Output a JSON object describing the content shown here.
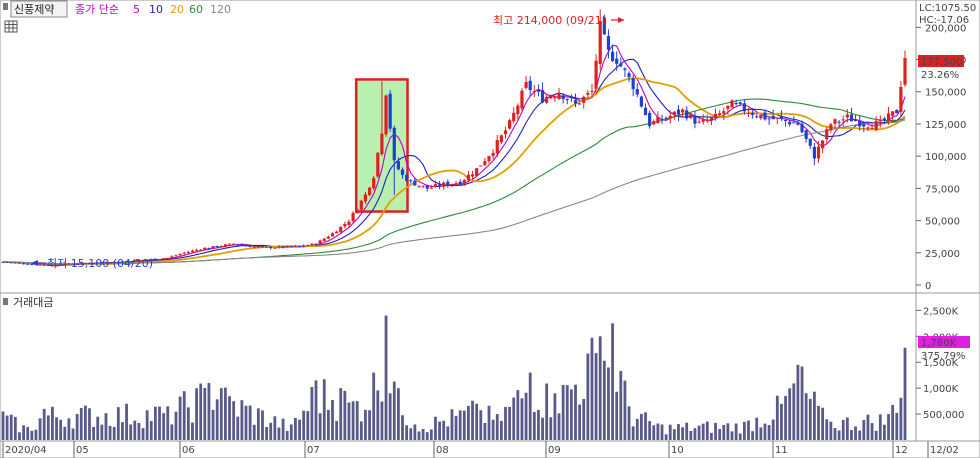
{
  "header": {
    "stock_name": "신풍제약",
    "legend_prefix": "종가 단순",
    "ma_periods": [
      "5",
      "10",
      "20",
      "60",
      "120"
    ],
    "ma_colors": [
      "#c000c0",
      "#2020c0",
      "#e0a000",
      "#2a8a3a",
      "#888888"
    ]
  },
  "price_panel": {
    "lc_label": "LC:1075.50",
    "hc_label": "HC:-17.06",
    "last_price_badge": "177,500",
    "last_change_pct": "23.26%",
    "high_annotation": "최고 214,000 (09/21)",
    "low_annotation": "최저 15,100 (04/20)",
    "y_ticks": [
      "200,000",
      "175,000",
      "150,000",
      "125,000",
      "100,000",
      "75,000",
      "50,000",
      "25,000",
      "0"
    ]
  },
  "volume_panel": {
    "title": "거래대금",
    "last_value_badge": "1,780K",
    "last_change_pct": "375.79%",
    "y_ticks": [
      "2,500K",
      "2,000K",
      "1,500K",
      "1,000K",
      "500,000"
    ]
  },
  "x_axis": {
    "labels": [
      "2020/04",
      "05",
      "06",
      "07",
      "08",
      "09",
      "10",
      "11",
      "12",
      "12/02"
    ]
  },
  "colors": {
    "up": "#e02020",
    "down": "#2040d0",
    "volume_bar": "#5a5a8a",
    "highlight_border": "#e02020",
    "highlight_fill": "#b8f0b0",
    "badge_price": "#e02020",
    "badge_volume": "#e020e0",
    "right_label_red": "#e02020",
    "right_label_blue": "#2040d0"
  },
  "chart_data": {
    "type": "candlestick",
    "x_range": [
      "2020/04",
      "12/02"
    ],
    "price_ylim": [
      0,
      215000
    ],
    "volume_ylim": [
      0,
      2700000
    ],
    "price_close_approx": [
      [
        0,
        18000
      ],
      [
        4,
        17000
      ],
      [
        8,
        16000
      ],
      [
        12,
        15100
      ],
      [
        16,
        16500
      ],
      [
        20,
        17000
      ],
      [
        24,
        17500
      ],
      [
        28,
        18000
      ],
      [
        32,
        19000
      ],
      [
        36,
        20000
      ],
      [
        40,
        21000
      ],
      [
        44,
        25000
      ],
      [
        48,
        28000
      ],
      [
        52,
        30000
      ],
      [
        56,
        32000
      ],
      [
        60,
        30000
      ],
      [
        64,
        29000
      ],
      [
        68,
        29500
      ],
      [
        72,
        30000
      ],
      [
        76,
        32000
      ],
      [
        80,
        40000
      ],
      [
        84,
        50000
      ],
      [
        86,
        60000
      ],
      [
        88,
        70000
      ],
      [
        90,
        85000
      ],
      [
        92,
        120000
      ],
      [
        93,
        150000
      ],
      [
        95,
        95000
      ],
      [
        97,
        85000
      ],
      [
        99,
        80000
      ],
      [
        103,
        75000
      ],
      [
        107,
        78000
      ],
      [
        111,
        80000
      ],
      [
        115,
        90000
      ],
      [
        119,
        105000
      ],
      [
        123,
        125000
      ],
      [
        127,
        155000
      ],
      [
        131,
        145000
      ],
      [
        135,
        150000
      ],
      [
        139,
        140000
      ],
      [
        143,
        150000
      ],
      [
        145,
        200000
      ],
      [
        147,
        180000
      ],
      [
        149,
        175000
      ],
      [
        153,
        155000
      ],
      [
        157,
        125000
      ],
      [
        161,
        130000
      ],
      [
        165,
        135000
      ],
      [
        169,
        125000
      ],
      [
        173,
        130000
      ],
      [
        177,
        140000
      ],
      [
        181,
        135000
      ],
      [
        185,
        130000
      ],
      [
        189,
        128000
      ],
      [
        193,
        125000
      ],
      [
        197,
        100000
      ],
      [
        201,
        125000
      ],
      [
        205,
        130000
      ],
      [
        209,
        125000
      ],
      [
        213,
        125000
      ],
      [
        217,
        135000
      ],
      [
        219,
        177500
      ]
    ],
    "volume_approx": [
      [
        0,
        550000
      ],
      [
        6,
        250000
      ],
      [
        10,
        600000
      ],
      [
        40,
        650000
      ],
      [
        50,
        1100000
      ],
      [
        53,
        1000000
      ],
      [
        70,
        300000
      ],
      [
        76,
        1150000
      ],
      [
        82,
        1000000
      ],
      [
        86,
        750000
      ],
      [
        90,
        1300000
      ],
      [
        93,
        2400000
      ],
      [
        96,
        1000000
      ],
      [
        100,
        300000
      ],
      [
        115,
        700000
      ],
      [
        120,
        500000
      ],
      [
        128,
        1300000
      ],
      [
        134,
        900000
      ],
      [
        145,
        2000000
      ],
      [
        148,
        2250000
      ],
      [
        152,
        650000
      ],
      [
        160,
        300000
      ],
      [
        180,
        350000
      ],
      [
        190,
        850000
      ],
      [
        193,
        1450000
      ],
      [
        200,
        400000
      ],
      [
        215,
        500000
      ],
      [
        219,
        1780000
      ]
    ]
  }
}
